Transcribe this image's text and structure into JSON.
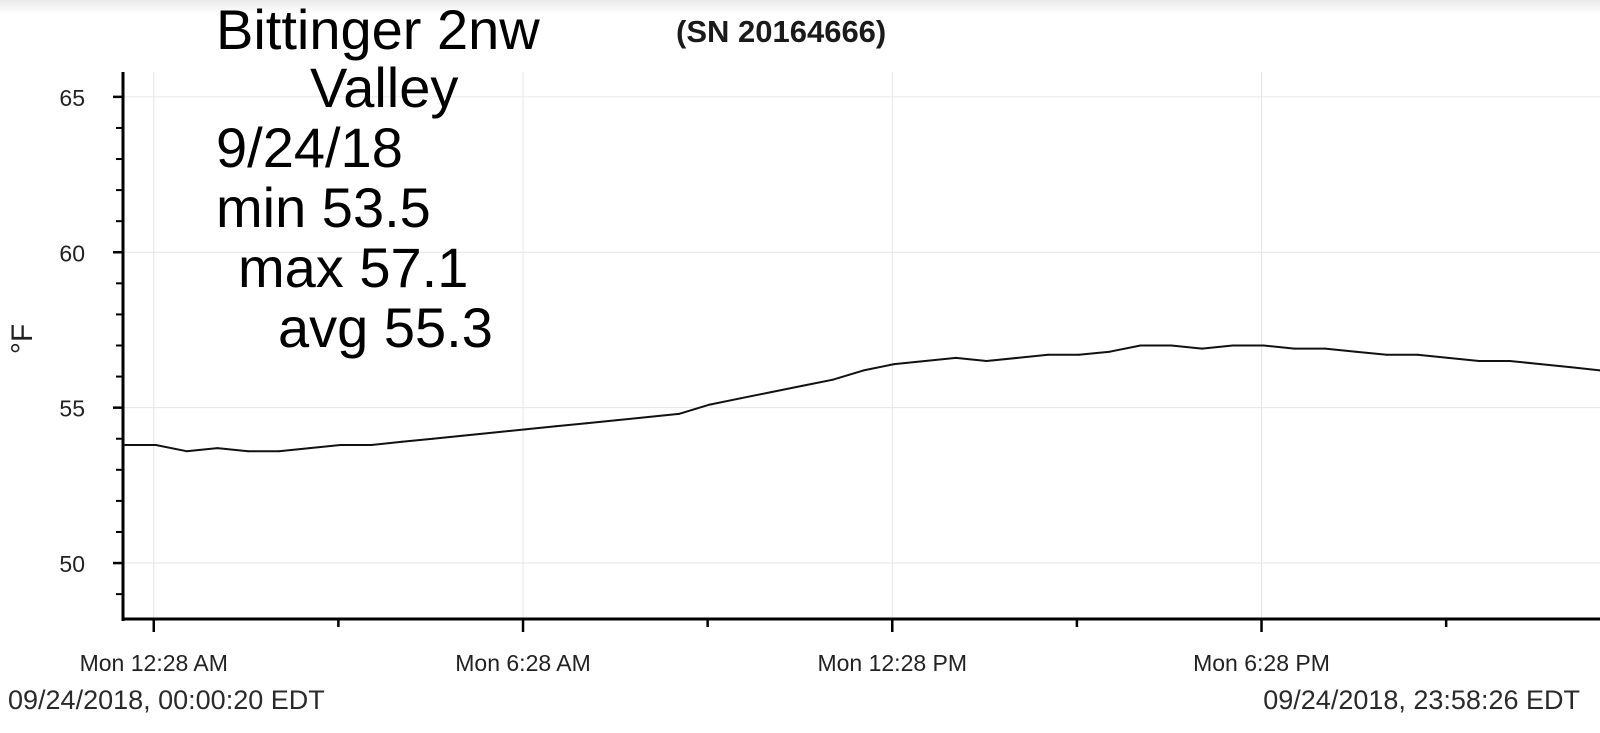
{
  "serial": "(SN 20164666)",
  "annotations": {
    "station_line1": "Bittinger 2nw",
    "station_line2": "Valley",
    "date": "9/24/18",
    "min": "min 53.5",
    "max": "max 57.1",
    "avg": "avg 55.3"
  },
  "range": {
    "start": "09/24/2018, 00:00:20 EDT",
    "end": "09/24/2018, 23:58:26 EDT"
  },
  "colors": {
    "line": "#111111",
    "grid": "#e6e6e6",
    "axis": "#000000"
  },
  "chart_data": {
    "type": "line",
    "title": "",
    "xlabel": "",
    "ylabel": "°F",
    "ylim": [
      48.2,
      65.8
    ],
    "xlim": [
      "Sun 11:58 PM",
      "Mon 11:58 PM"
    ],
    "grid": true,
    "legend": "none",
    "yticks": [
      50,
      55,
      60,
      65
    ],
    "xticks": [
      "Mon 12:28 AM",
      "Mon 6:28 AM",
      "Mon 12:28 PM",
      "Mon 6:28 PM"
    ],
    "series": [
      {
        "x": [
          "Mon 12:00 AM",
          "Mon 12:30 AM",
          "Mon 1:00 AM",
          "Mon 1:30 AM",
          "Mon 2:00 AM",
          "Mon 2:30 AM",
          "Mon 3:00 AM",
          "Mon 3:30 AM",
          "Mon 4:00 AM",
          "Mon 4:30 AM",
          "Mon 5:00 AM",
          "Mon 5:30 AM",
          "Mon 6:00 AM",
          "Mon 6:30 AM",
          "Mon 7:00 AM",
          "Mon 7:30 AM",
          "Mon 8:00 AM",
          "Mon 8:30 AM",
          "Mon 9:00 AM",
          "Mon 9:30 AM",
          "Mon 10:00 AM",
          "Mon 10:30 AM",
          "Mon 11:00 AM",
          "Mon 11:30 AM",
          "Mon 12:00 PM",
          "Mon 12:30 PM",
          "Mon 1:00 PM",
          "Mon 1:30 PM",
          "Mon 2:00 PM",
          "Mon 2:30 PM",
          "Mon 3:00 PM",
          "Mon 3:30 PM",
          "Mon 4:00 PM",
          "Mon 4:30 PM",
          "Mon 5:00 PM",
          "Mon 5:30 PM",
          "Mon 6:00 PM",
          "Mon 6:30 PM",
          "Mon 7:00 PM",
          "Mon 7:30 PM",
          "Mon 8:00 PM",
          "Mon 8:30 PM",
          "Mon 9:00 PM",
          "Mon 9:30 PM",
          "Mon 10:00 PM",
          "Mon 10:30 PM",
          "Mon 11:00 PM",
          "Mon 11:30 PM",
          "Mon 11:58 PM"
        ],
        "y": [
          53.8,
          53.8,
          53.6,
          53.7,
          53.6,
          53.6,
          53.7,
          53.8,
          53.8,
          53.9,
          54.0,
          54.1,
          54.2,
          54.3,
          54.4,
          54.5,
          54.6,
          54.7,
          54.8,
          55.1,
          55.3,
          55.5,
          55.7,
          55.9,
          56.2,
          56.4,
          56.5,
          56.6,
          56.5,
          56.6,
          56.7,
          56.7,
          56.8,
          57.0,
          57.0,
          56.9,
          57.0,
          57.0,
          56.9,
          56.9,
          56.8,
          56.7,
          56.7,
          56.6,
          56.5,
          56.5,
          56.4,
          56.3,
          56.2
        ]
      }
    ]
  }
}
